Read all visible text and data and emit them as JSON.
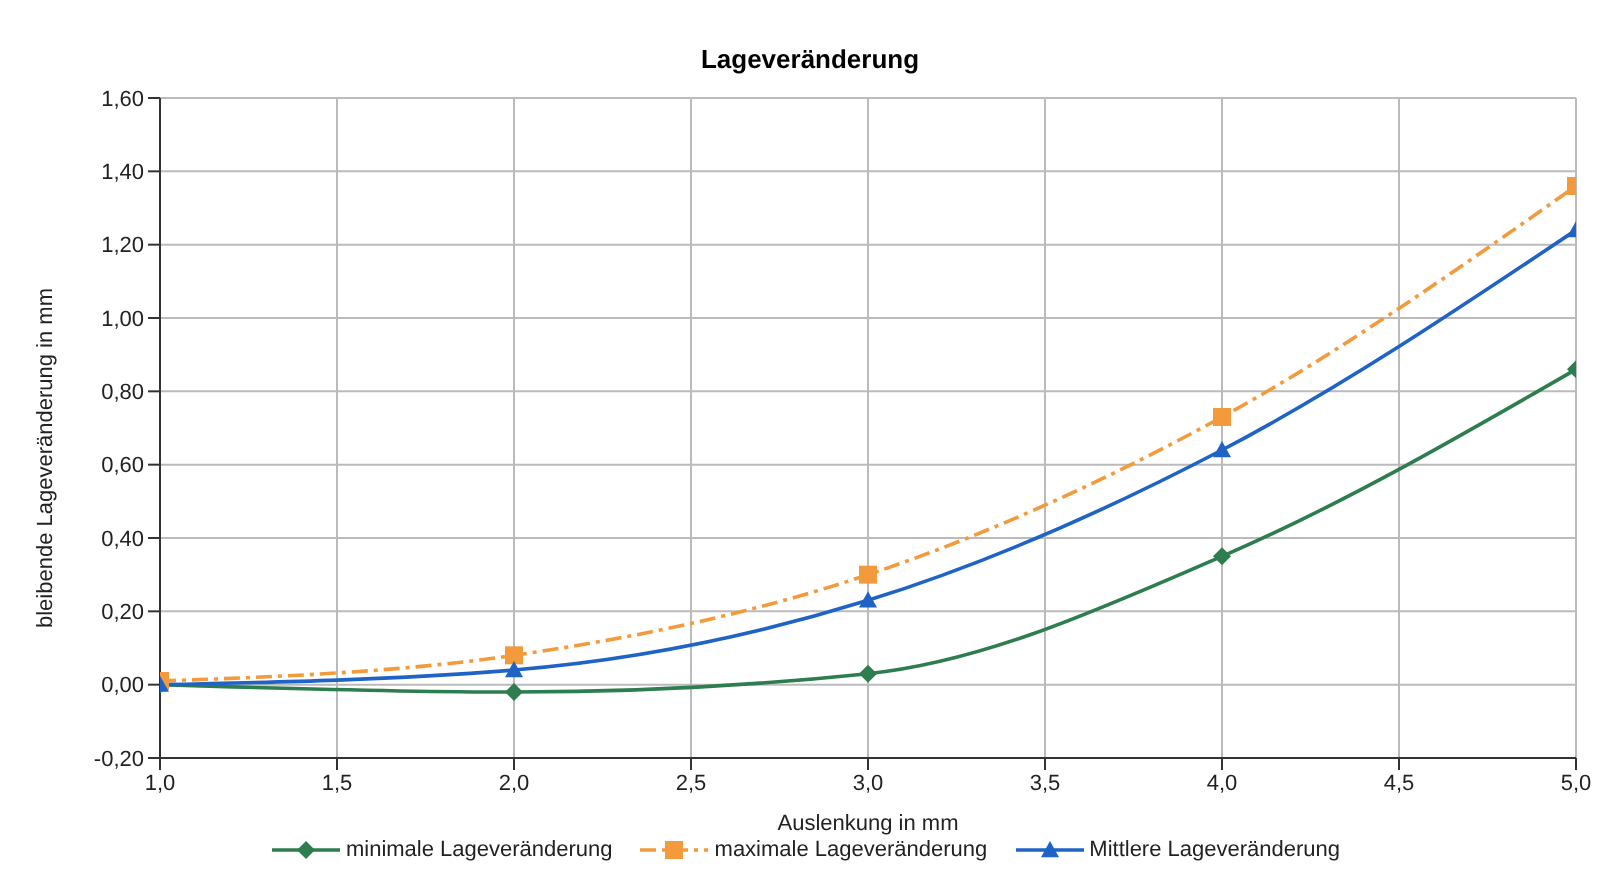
{
  "chart_data": {
    "type": "line",
    "title": "Lageveränderung",
    "xlabel": "Auslenkung in mm",
    "ylabel": "bleibende Lageveränderung in mm",
    "x": [
      1,
      2,
      3,
      4,
      5
    ],
    "series": [
      {
        "name": "minimale Lageveränderung",
        "color": "#2e7d4f",
        "marker": "diamond",
        "line_style": "solid",
        "values": [
          0.0,
          -0.02,
          0.03,
          0.35,
          0.86
        ]
      },
      {
        "name": "maximale Lageveränderung",
        "color": "#f39a3c",
        "marker": "square",
        "line_style": "dashed",
        "values": [
          0.01,
          0.08,
          0.3,
          0.73,
          1.36
        ]
      },
      {
        "name": "Mittlere Lageveränderung",
        "color": "#1f63c6",
        "marker": "triangle",
        "line_style": "solid",
        "values": [
          0.0,
          0.04,
          0.23,
          0.64,
          1.24
        ]
      }
    ],
    "xlim": [
      1,
      5
    ],
    "xticks": [
      {
        "value": 1,
        "label": "1,0"
      },
      {
        "value": 1.5,
        "label": "1,5"
      },
      {
        "value": 2,
        "label": "2,0"
      },
      {
        "value": 2.5,
        "label": "2,5"
      },
      {
        "value": 3,
        "label": "3,0"
      },
      {
        "value": 3.5,
        "label": "3,5"
      },
      {
        "value": 4,
        "label": "4,0"
      },
      {
        "value": 4.5,
        "label": "4,5"
      },
      {
        "value": 5,
        "label": "5,0"
      }
    ],
    "ylim": [
      -0.2,
      1.6
    ],
    "yticks": [
      {
        "value": -0.2,
        "label": "-0,20"
      },
      {
        "value": 0,
        "label": "0,00"
      },
      {
        "value": 0.2,
        "label": "0,20"
      },
      {
        "value": 0.4,
        "label": "0,40"
      },
      {
        "value": 0.6,
        "label": "0,60"
      },
      {
        "value": 0.8,
        "label": "0,80"
      },
      {
        "value": 1,
        "label": "1,00"
      },
      {
        "value": 1.2,
        "label": "1,20"
      },
      {
        "value": 1.4,
        "label": "1,40"
      },
      {
        "value": 1.6,
        "label": "1,60"
      }
    ],
    "grid": true,
    "legend": "bottom"
  }
}
